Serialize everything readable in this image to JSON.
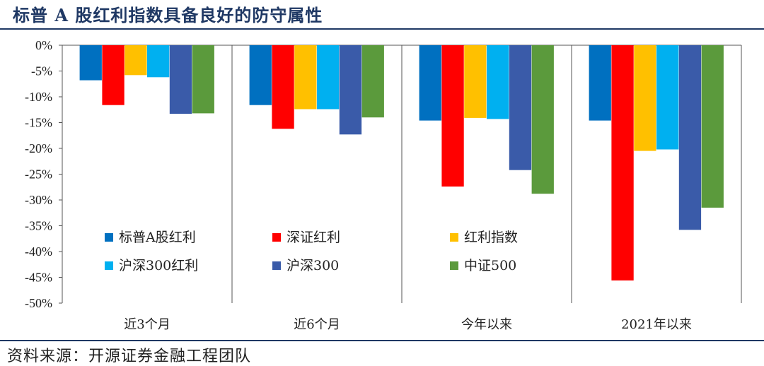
{
  "header": {
    "title": "标普 A 股红利指数具备良好的防守属性"
  },
  "footer": {
    "source": "资料来源：开源证券金融工程团队"
  },
  "colors": {
    "title": "#1f3864",
    "series": [
      "#0070c0",
      "#ff0000",
      "#ffc000",
      "#00b0f0",
      "#3a5ba9",
      "#5b9a3c"
    ]
  },
  "chart_data": {
    "type": "bar",
    "categories": [
      "近3个月",
      "近6个月",
      "今年以来",
      "2021年以来"
    ],
    "series": [
      {
        "name": "标普A股红利",
        "values": [
          -6.8,
          -11.6,
          -14.6,
          -14.6
        ]
      },
      {
        "name": "深证红利",
        "values": [
          -11.6,
          -16.2,
          -27.4,
          -45.6
        ]
      },
      {
        "name": "红利指数",
        "values": [
          -5.8,
          -12.4,
          -14.1,
          -20.5
        ]
      },
      {
        "name": "沪深300红利",
        "values": [
          -6.2,
          -12.4,
          -14.3,
          -20.2
        ]
      },
      {
        "name": "沪深300",
        "values": [
          -13.3,
          -17.3,
          -24.2,
          -35.8
        ]
      },
      {
        "name": "中证500",
        "values": [
          -13.2,
          -14.0,
          -28.8,
          -31.5
        ]
      }
    ],
    "yticks": [
      "0%",
      "-5%",
      "-10%",
      "-15%",
      "-20%",
      "-25%",
      "-30%",
      "-35%",
      "-40%",
      "-45%",
      "-50%"
    ],
    "ylim": [
      -50,
      0
    ],
    "legend": "inside-lower-left",
    "grid": false
  }
}
